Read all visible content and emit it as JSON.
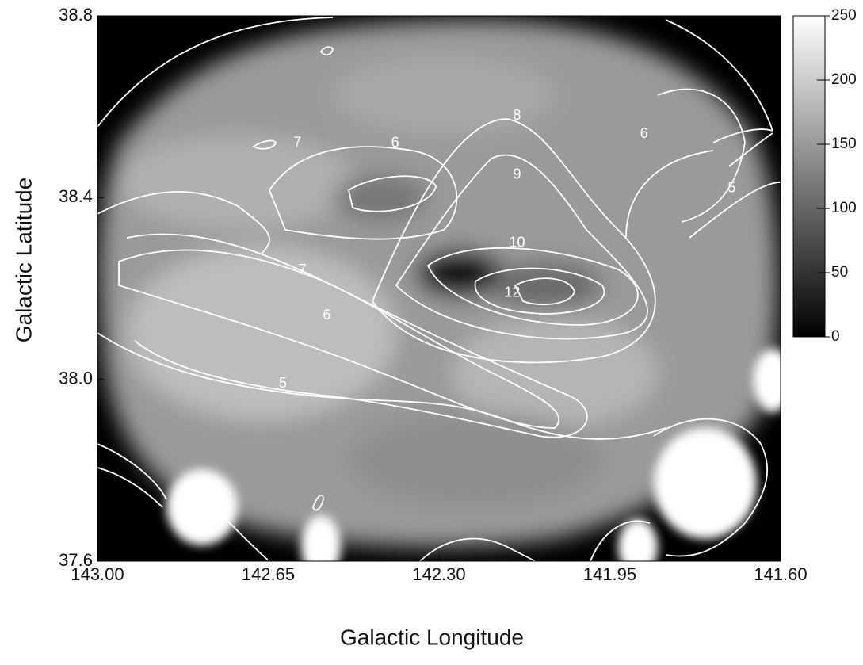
{
  "chart_data": {
    "type": "image",
    "xlabel": "Galactic Longitude",
    "ylabel": "Galactic Latitude",
    "xlim": [
      143.0,
      141.6
    ],
    "ylim": [
      37.6,
      38.8
    ],
    "xticks": [
      {
        "value": 143.0,
        "label": "143.00"
      },
      {
        "value": 142.65,
        "label": "142.65"
      },
      {
        "value": 142.3,
        "label": "142.30"
      },
      {
        "value": 141.95,
        "label": "141.95"
      },
      {
        "value": 141.6,
        "label": "141.60"
      }
    ],
    "yticks": [
      38.8,
      38.4,
      {
        "value": 38.0,
        "label": "38.0"
      },
      37.6
    ],
    "colorbar": {
      "lim": [
        0,
        250
      ],
      "ticks": [
        0,
        50,
        100,
        150,
        200,
        250
      ]
    },
    "contour_labels": [
      {
        "x": 142.14,
        "y": 38.58,
        "level": 8
      },
      {
        "x": 142.59,
        "y": 38.52,
        "level": 7
      },
      {
        "x": 142.39,
        "y": 38.52,
        "level": 6
      },
      {
        "x": 141.88,
        "y": 38.54,
        "level": 6
      },
      {
        "x": 142.14,
        "y": 38.45,
        "level": 9
      },
      {
        "x": 141.7,
        "y": 38.42,
        "level": 5
      },
      {
        "x": 142.14,
        "y": 38.3,
        "level": 10
      },
      {
        "x": 142.58,
        "y": 38.24,
        "level": 7
      },
      {
        "x": 142.15,
        "y": 38.19,
        "level": 12
      },
      {
        "x": 142.53,
        "y": 38.14,
        "level": 6
      },
      {
        "x": 142.62,
        "y": 37.99,
        "level": 5
      }
    ]
  }
}
